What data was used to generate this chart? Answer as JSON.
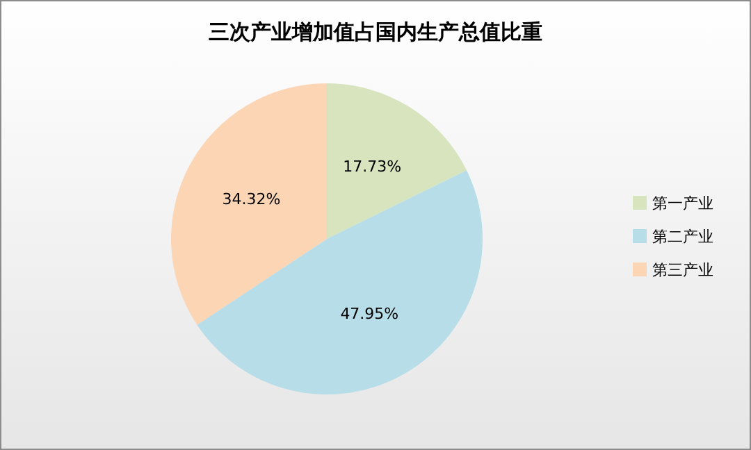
{
  "chart_data": {
    "type": "pie",
    "title": "三次产业增加值占国内生产总值比重",
    "categories": [
      "第一产业",
      "第二产业",
      "第三产业"
    ],
    "values": [
      17.73,
      47.95,
      34.32
    ],
    "value_labels": [
      "17.73%",
      "47.95%",
      "34.32%"
    ],
    "colors": [
      "#d7e4bd",
      "#b7dde8",
      "#fcd5b5"
    ],
    "legend": "right"
  }
}
